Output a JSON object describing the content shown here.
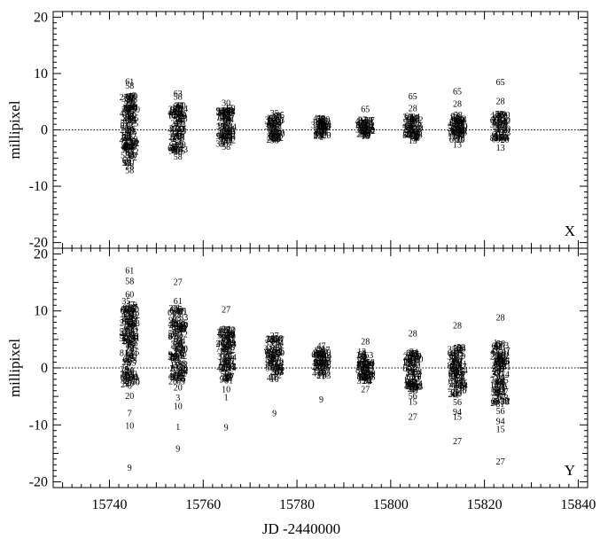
{
  "chart_data": {
    "type": "scatter",
    "xlabel": "JD -2440000",
    "xlim": [
      15728,
      15842
    ],
    "xticks": [
      "15740",
      "15760",
      "15780",
      "15800",
      "15820",
      "15840"
    ],
    "panels": [
      {
        "panel_label": "X",
        "ylabel": "millipixel",
        "ylim": [
          -21,
          21
        ],
        "yticks": [
          "20",
          "10",
          "0",
          "-10",
          "-20"
        ],
        "epochs": [
          15744.3,
          15754.6,
          15764.9,
          15775.2,
          15785.2,
          15794.6,
          15804.7,
          15814.2,
          15823.4
        ],
        "labeled_points": [
          {
            "x": 15744.3,
            "y": 8.5,
            "label": "61"
          },
          {
            "x": 15744.3,
            "y": 7.8,
            "label": "58"
          },
          {
            "x": 15744.3,
            "y": 5.9,
            "label": "60"
          },
          {
            "x": 15744.3,
            "y": 3.9,
            "label": "30"
          },
          {
            "x": 15744.3,
            "y": -4.6,
            "label": "30"
          },
          {
            "x": 15744.3,
            "y": -5.8,
            "label": "20"
          },
          {
            "x": 15744.3,
            "y": -6.5,
            "label": "28"
          },
          {
            "x": 15744.3,
            "y": -7.2,
            "label": "58"
          },
          {
            "x": 15754.6,
            "y": 6.4,
            "label": "63"
          },
          {
            "x": 15754.6,
            "y": 5.8,
            "label": "58"
          },
          {
            "x": 15754.6,
            "y": 3.7,
            "label": "30"
          },
          {
            "x": 15754.6,
            "y": -4.0,
            "label": "30"
          },
          {
            "x": 15754.6,
            "y": -4.8,
            "label": "58"
          },
          {
            "x": 15764.9,
            "y": 4.7,
            "label": "30"
          },
          {
            "x": 15764.9,
            "y": -3.1,
            "label": "58"
          },
          {
            "x": 15775.2,
            "y": 2.9,
            "label": "35"
          },
          {
            "x": 15775.2,
            "y": -1.9,
            "label": "58"
          },
          {
            "x": 15785.2,
            "y": 2.0,
            "label": "58"
          },
          {
            "x": 15794.6,
            "y": 3.6,
            "label": "65"
          },
          {
            "x": 15794.6,
            "y": -1.2,
            "label": "13"
          },
          {
            "x": 15804.7,
            "y": 5.9,
            "label": "65"
          },
          {
            "x": 15804.7,
            "y": 3.8,
            "label": "28"
          },
          {
            "x": 15804.7,
            "y": -2.0,
            "label": "13"
          },
          {
            "x": 15814.2,
            "y": 6.8,
            "label": "65"
          },
          {
            "x": 15814.2,
            "y": 4.6,
            "label": "28"
          },
          {
            "x": 15814.2,
            "y": -2.7,
            "label": "13"
          },
          {
            "x": 15823.4,
            "y": 8.4,
            "label": "65"
          },
          {
            "x": 15823.4,
            "y": 5.0,
            "label": "28"
          },
          {
            "x": 15823.4,
            "y": -3.2,
            "label": "13"
          }
        ],
        "clusters": [
          {
            "x": 15744.3,
            "ymin": -6.0,
            "ymax": 6.0
          },
          {
            "x": 15754.6,
            "ymin": -3.8,
            "ymax": 4.4
          },
          {
            "x": 15764.9,
            "ymin": -2.6,
            "ymax": 3.8
          },
          {
            "x": 15775.2,
            "ymin": -1.8,
            "ymax": 2.7
          },
          {
            "x": 15785.2,
            "ymin": -1.3,
            "ymax": 2.1
          },
          {
            "x": 15794.6,
            "ymin": -1.0,
            "ymax": 1.8
          },
          {
            "x": 15804.7,
            "ymin": -1.6,
            "ymax": 2.4
          },
          {
            "x": 15814.2,
            "ymin": -1.8,
            "ymax": 2.6
          },
          {
            "x": 15823.4,
            "ymin": -2.0,
            "ymax": 2.8
          }
        ]
      },
      {
        "panel_label": "Y",
        "ylabel": "millipixel",
        "ylim": [
          -21,
          21
        ],
        "yticks": [
          "20",
          "10",
          "0",
          "-10",
          "-20"
        ],
        "labeled_points": [
          {
            "x": 15744.3,
            "y": 17.0,
            "label": "61"
          },
          {
            "x": 15744.3,
            "y": 15.2,
            "label": "58"
          },
          {
            "x": 15744.3,
            "y": 12.8,
            "label": "60"
          },
          {
            "x": 15744.3,
            "y": -3.2,
            "label": "6"
          },
          {
            "x": 15744.3,
            "y": -5.0,
            "label": "20"
          },
          {
            "x": 15744.3,
            "y": -8.0,
            "label": "7"
          },
          {
            "x": 15744.3,
            "y": -10.2,
            "label": "10"
          },
          {
            "x": 15744.3,
            "y": -17.6,
            "label": "9"
          },
          {
            "x": 15754.6,
            "y": 15.0,
            "label": "27"
          },
          {
            "x": 15754.6,
            "y": 11.7,
            "label": "61"
          },
          {
            "x": 15754.6,
            "y": -3.5,
            "label": "20"
          },
          {
            "x": 15754.6,
            "y": -5.3,
            "label": "3"
          },
          {
            "x": 15754.6,
            "y": -6.8,
            "label": "10"
          },
          {
            "x": 15754.6,
            "y": -10.4,
            "label": "1"
          },
          {
            "x": 15754.6,
            "y": -14.2,
            "label": "9"
          },
          {
            "x": 15764.9,
            "y": 10.2,
            "label": "27"
          },
          {
            "x": 15764.9,
            "y": -3.8,
            "label": "10"
          },
          {
            "x": 15764.9,
            "y": -5.2,
            "label": "1"
          },
          {
            "x": 15764.9,
            "y": -10.5,
            "label": "9"
          },
          {
            "x": 15775.2,
            "y": 5.6,
            "label": "27"
          },
          {
            "x": 15775.2,
            "y": -2.0,
            "label": "10"
          },
          {
            "x": 15775.2,
            "y": -8.0,
            "label": "9"
          },
          {
            "x": 15785.2,
            "y": 3.8,
            "label": "47"
          },
          {
            "x": 15785.2,
            "y": -5.6,
            "label": "9"
          },
          {
            "x": 15794.6,
            "y": 4.6,
            "label": "28"
          },
          {
            "x": 15794.6,
            "y": -3.8,
            "label": "27"
          },
          {
            "x": 15804.7,
            "y": 6.0,
            "label": "28"
          },
          {
            "x": 15804.7,
            "y": -5.0,
            "label": "56"
          },
          {
            "x": 15804.7,
            "y": -6.0,
            "label": "15"
          },
          {
            "x": 15804.7,
            "y": -8.6,
            "label": "27"
          },
          {
            "x": 15814.2,
            "y": 7.4,
            "label": "28"
          },
          {
            "x": 15814.2,
            "y": -6.1,
            "label": "56"
          },
          {
            "x": 15814.2,
            "y": -7.8,
            "label": "94"
          },
          {
            "x": 15814.2,
            "y": -8.6,
            "label": "15"
          },
          {
            "x": 15814.2,
            "y": -12.9,
            "label": "27"
          },
          {
            "x": 15823.4,
            "y": 8.8,
            "label": "28"
          },
          {
            "x": 15823.4,
            "y": -7.6,
            "label": "56"
          },
          {
            "x": 15823.4,
            "y": -9.4,
            "label": "94"
          },
          {
            "x": 15823.4,
            "y": -10.8,
            "label": "15"
          },
          {
            "x": 15823.4,
            "y": -16.5,
            "label": "27"
          }
        ],
        "clusters": [
          {
            "x": 15744.3,
            "ymin": -3.0,
            "ymax": 12.0
          },
          {
            "x": 15754.6,
            "ymin": -2.5,
            "ymax": 10.5
          },
          {
            "x": 15764.9,
            "ymin": -2.6,
            "ymax": 7.0
          },
          {
            "x": 15775.2,
            "ymin": -1.8,
            "ymax": 5.2
          },
          {
            "x": 15785.2,
            "ymin": -1.5,
            "ymax": 3.4
          },
          {
            "x": 15794.6,
            "ymin": -2.5,
            "ymax": 2.8
          },
          {
            "x": 15804.7,
            "ymin": -4.0,
            "ymax": 2.8
          },
          {
            "x": 15814.2,
            "ymin": -5.0,
            "ymax": 3.6
          },
          {
            "x": 15823.4,
            "ymin": -6.5,
            "ymax": 4.4
          }
        ]
      }
    ]
  }
}
